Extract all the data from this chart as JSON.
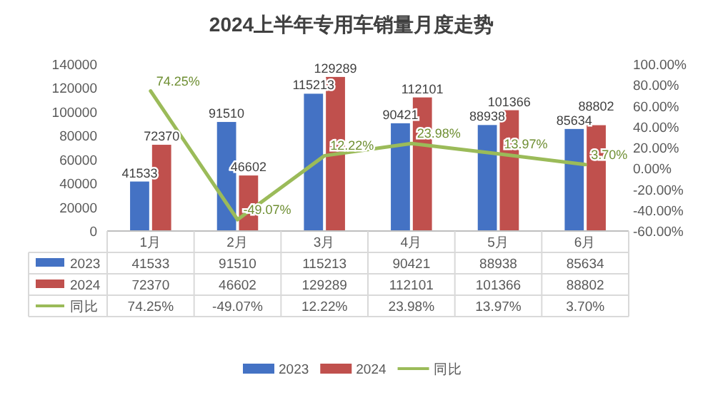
{
  "chart_data": {
    "type": "bar",
    "title": "2024上半年专用车销量月度走势",
    "categories": [
      "1月",
      "2月",
      "3月",
      "4月",
      "5月",
      "6月"
    ],
    "series": [
      {
        "name": "2023",
        "color": "#4472c4",
        "values": [
          41533,
          91510,
          115213,
          90421,
          88938,
          85634
        ],
        "value_labels": [
          "41533",
          "91510",
          "115213",
          "90421",
          "88938",
          "85634"
        ]
      },
      {
        "name": "2024",
        "color": "#c0504d",
        "values": [
          72370,
          46602,
          129289,
          112101,
          101366,
          88802
        ],
        "value_labels": [
          "72370",
          "46602",
          "129289",
          "112101",
          "101366",
          "88802"
        ]
      },
      {
        "name": "同比",
        "type": "line",
        "axis": "y2",
        "color": "#9bbb59",
        "values": [
          74.25,
          -49.07,
          12.22,
          23.98,
          13.97,
          3.7
        ],
        "value_labels": [
          "74.25%",
          "-49.07%",
          "12.22%",
          "23.98%",
          "13.97%",
          "3.70%"
        ]
      }
    ],
    "ylim": [
      0,
      140000
    ],
    "yticks": [
      0,
      20000,
      40000,
      60000,
      80000,
      100000,
      120000,
      140000
    ],
    "y2lim": [
      -60,
      100
    ],
    "y2ticks": [
      {
        "value": 100,
        "label": "100.00%"
      },
      {
        "value": 80,
        "label": "80.00%"
      },
      {
        "value": 60,
        "label": "60.00%"
      },
      {
        "value": 40,
        "label": "40.00%"
      },
      {
        "value": 20,
        "label": "20.00%"
      },
      {
        "value": 0,
        "label": "0.00%"
      },
      {
        "value": -20,
        "label": "-20.00%"
      },
      {
        "value": -40,
        "label": "-40.00%"
      },
      {
        "value": -60,
        "label": "-60.00%"
      }
    ],
    "legend": "bottom"
  }
}
